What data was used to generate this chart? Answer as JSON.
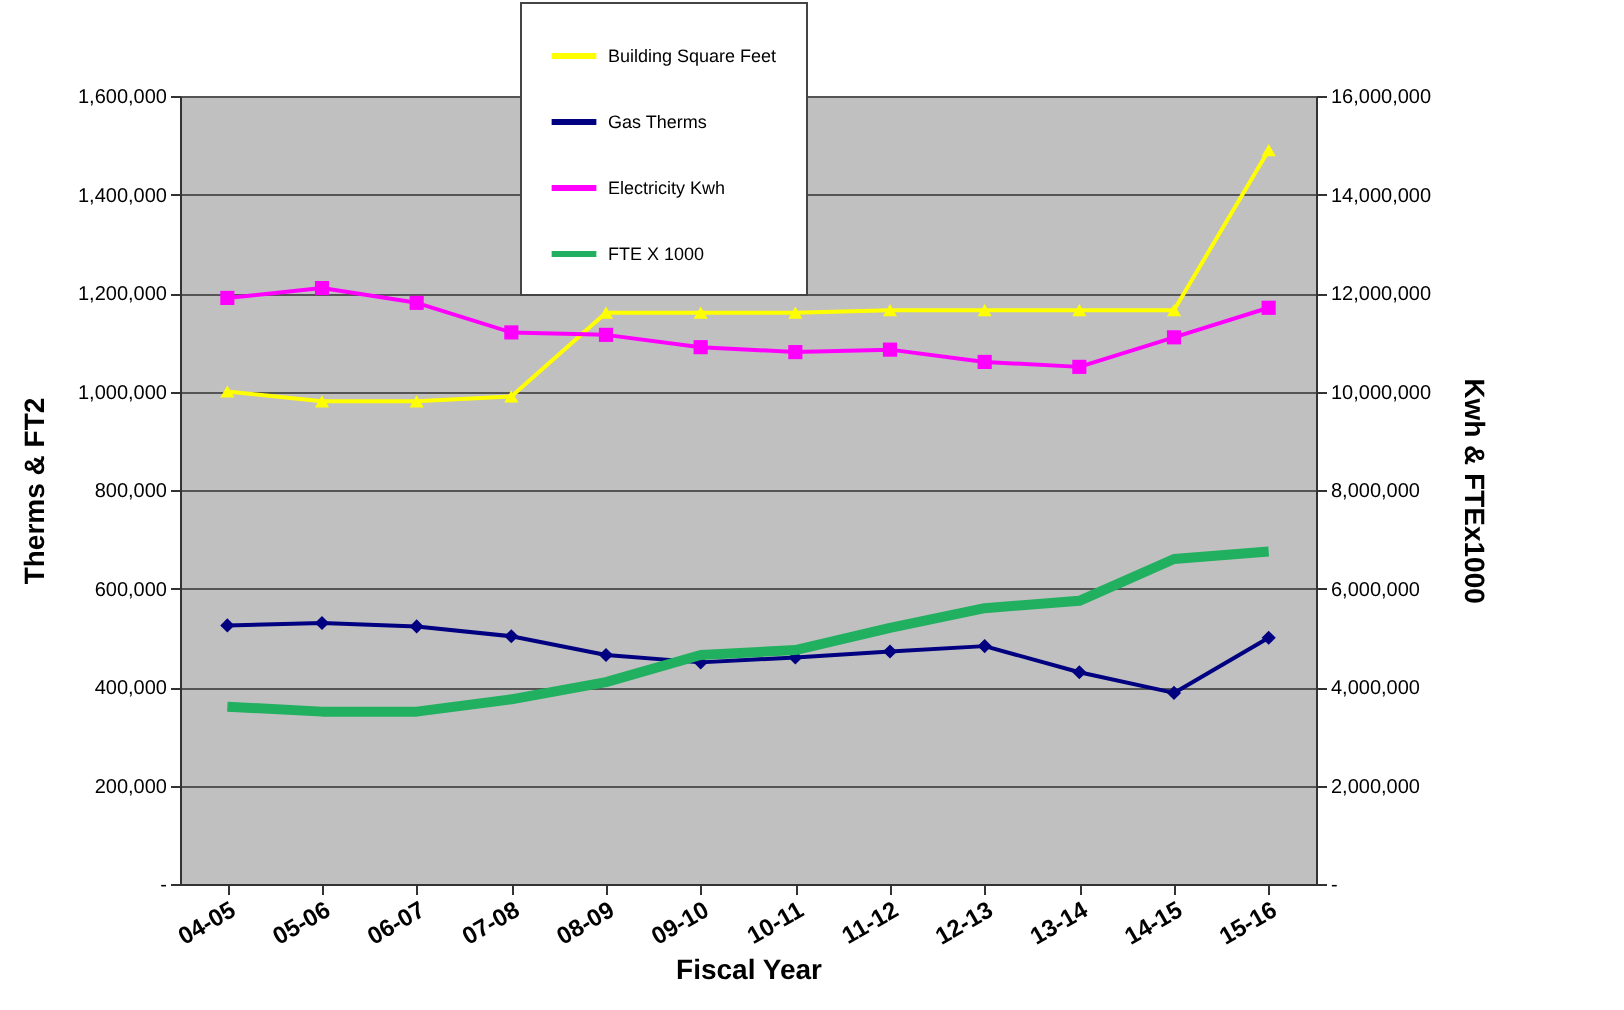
{
  "chart_data": {
    "type": "line",
    "categories": [
      "04-05",
      "05-06",
      "06-07",
      "07-08",
      "08-09",
      "09-10",
      "10-11",
      "11-12",
      "12-13",
      "13-14",
      "14-15",
      "15-16"
    ],
    "xlabel": "Fiscal Year",
    "ylabel": "Therms & FT2",
    "y2label": "Kwh & FTEx1000",
    "series": [
      {
        "name": "Building Square Feet",
        "color": "#ffff00",
        "marker": "triangle",
        "values": [
          1000000,
          980000,
          980000,
          990000,
          1160000,
          1160000,
          1160000,
          1165000,
          1165000,
          1165000,
          1165000,
          1490000
        ]
      },
      {
        "name": "Gas Therms",
        "color": "#000080",
        "marker": "diamond",
        "values": [
          525000,
          530000,
          523000,
          503000,
          465000,
          450000,
          460000,
          472000,
          483000,
          430000,
          388000,
          500000
        ]
      },
      {
        "name": "Electricity Kwh",
        "color": "#ff00ff",
        "marker": "square",
        "axis": "y2",
        "values": [
          11900000,
          12100000,
          11800000,
          11200000,
          11150000,
          10900000,
          10800000,
          10850000,
          10600000,
          10500000,
          11100000,
          11700000
        ]
      },
      {
        "name": "FTE X 1000",
        "color": "#20b060",
        "marker": "none",
        "axis": "y2",
        "values": [
          3600000,
          3500000,
          3500000,
          3750000,
          4100000,
          4650000,
          4750000,
          5200000,
          5600000,
          5750000,
          6600000,
          6750000
        ]
      }
    ],
    "ylim": [
      0,
      1600000
    ],
    "yticks": [
      {
        "value": 0,
        "label": "-"
      },
      {
        "value": 200000,
        "label": "200,000"
      },
      {
        "value": 400000,
        "label": "400,000"
      },
      {
        "value": 600000,
        "label": "600,000"
      },
      {
        "value": 800000,
        "label": "800,000"
      },
      {
        "value": 1000000,
        "label": "1,000,000"
      },
      {
        "value": 1200000,
        "label": "1,200,000"
      },
      {
        "value": 1400000,
        "label": "1,400,000"
      },
      {
        "value": 1600000,
        "label": "1,600,000"
      }
    ],
    "y2lim": [
      0,
      16000000
    ],
    "y2ticks": [
      {
        "value": 0,
        "label": "-"
      },
      {
        "value": 2000000,
        "label": "2,000,000"
      },
      {
        "value": 4000000,
        "label": "4,000,000"
      },
      {
        "value": 6000000,
        "label": "6,000,000"
      },
      {
        "value": 8000000,
        "label": "8,000,000"
      },
      {
        "value": 10000000,
        "label": "10,000,000"
      },
      {
        "value": 12000000,
        "label": "12,000,000"
      },
      {
        "value": 14000000,
        "label": "14,000,000"
      },
      {
        "value": 16000000,
        "label": "16,000,000"
      }
    ],
    "grid": "y",
    "legend": "top",
    "line_style": "solid"
  }
}
